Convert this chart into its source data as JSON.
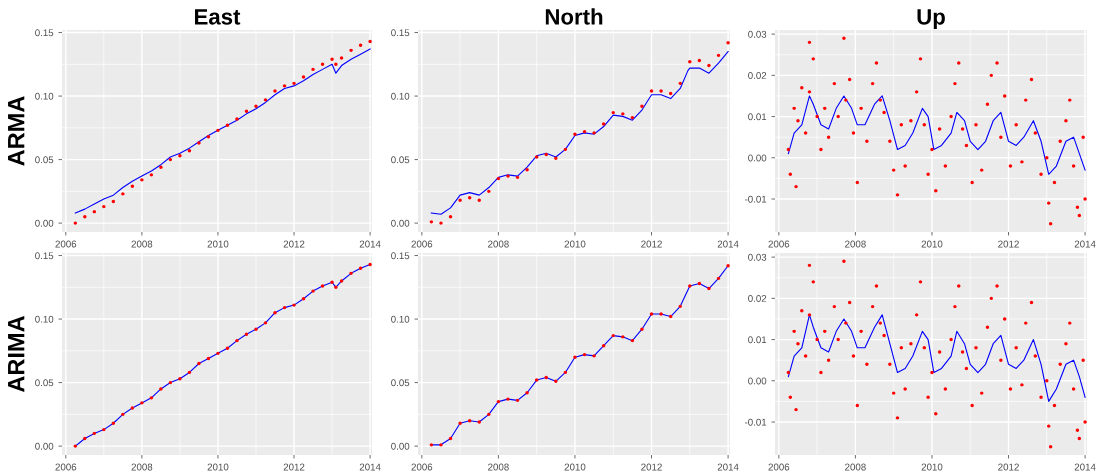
{
  "chart_data": [
    {
      "type": "line",
      "title": "East",
      "ylabel": "ARMA",
      "xlim": [
        2005.9,
        2014.05
      ],
      "ylim": [
        -0.007,
        0.152
      ],
      "xticks": [
        2006,
        2008,
        2010,
        2012,
        2014
      ],
      "yticks": [
        {
          "value": 0,
          "label": "0.00"
        },
        {
          "value": 0.05,
          "label": "0.05"
        },
        {
          "value": 0.1,
          "label": "0.10"
        },
        {
          "value": 0.15,
          "label": "0.15"
        }
      ],
      "grid": true,
      "series": [
        {
          "type": "scatter",
          "color": "#ff0000",
          "x": [
            2006.25,
            2006.5,
            2006.75,
            2007,
            2007.25,
            2007.5,
            2007.75,
            2008,
            2008.25,
            2008.5,
            2008.75,
            2009,
            2009.25,
            2009.5,
            2009.75,
            2010,
            2010.25,
            2010.5,
            2010.75,
            2011,
            2011.25,
            2011.5,
            2011.75,
            2012,
            2012.25,
            2012.5,
            2012.75,
            2013,
            2013.1,
            2013.25,
            2013.5,
            2013.75,
            2014
          ],
          "values": [
            0.0,
            0.005,
            0.009,
            0.013,
            0.017,
            0.023,
            0.029,
            0.034,
            0.038,
            0.044,
            0.05,
            0.053,
            0.057,
            0.063,
            0.068,
            0.073,
            0.077,
            0.082,
            0.088,
            0.092,
            0.097,
            0.104,
            0.108,
            0.11,
            0.115,
            0.121,
            0.125,
            0.129,
            0.125,
            0.13,
            0.136,
            0.14,
            0.143
          ]
        },
        {
          "type": "line",
          "color": "#0000ff",
          "x": [
            2006.25,
            2006.5,
            2006.75,
            2007,
            2007.25,
            2007.5,
            2007.75,
            2008,
            2008.25,
            2008.5,
            2008.75,
            2009,
            2009.25,
            2009.5,
            2009.75,
            2010,
            2010.25,
            2010.5,
            2010.75,
            2011,
            2011.25,
            2011.5,
            2011.75,
            2012,
            2012.25,
            2012.5,
            2012.75,
            2013,
            2013.1,
            2013.25,
            2013.5,
            2013.75,
            2014
          ],
          "values": [
            0.008,
            0.011,
            0.015,
            0.019,
            0.022,
            0.028,
            0.033,
            0.037,
            0.041,
            0.046,
            0.052,
            0.055,
            0.059,
            0.064,
            0.069,
            0.073,
            0.077,
            0.081,
            0.086,
            0.09,
            0.095,
            0.101,
            0.106,
            0.108,
            0.112,
            0.117,
            0.121,
            0.125,
            0.118,
            0.124,
            0.129,
            0.133,
            0.137
          ]
        }
      ]
    },
    {
      "type": "line",
      "title": "North",
      "xlim": [
        2005.9,
        2014.05
      ],
      "ylim": [
        -0.007,
        0.152
      ],
      "xticks": [
        2006,
        2008,
        2010,
        2012,
        2014
      ],
      "yticks": [
        {
          "value": 0,
          "label": "0.00"
        },
        {
          "value": 0.05,
          "label": "0.05"
        },
        {
          "value": 0.1,
          "label": "0.10"
        },
        {
          "value": 0.15,
          "label": "0.15"
        }
      ],
      "grid": true,
      "series": [
        {
          "type": "scatter",
          "color": "#ff0000",
          "x": [
            2006.25,
            2006.5,
            2006.75,
            2007,
            2007.25,
            2007.5,
            2007.75,
            2008,
            2008.25,
            2008.5,
            2008.75,
            2009,
            2009.25,
            2009.5,
            2009.75,
            2010,
            2010.25,
            2010.5,
            2010.75,
            2011,
            2011.25,
            2011.5,
            2011.75,
            2012,
            2012.25,
            2012.5,
            2012.75,
            2013,
            2013.25,
            2013.5,
            2013.75,
            2014
          ],
          "values": [
            0.001,
            0.0,
            0.005,
            0.018,
            0.02,
            0.018,
            0.025,
            0.035,
            0.037,
            0.036,
            0.042,
            0.052,
            0.054,
            0.051,
            0.058,
            0.07,
            0.072,
            0.071,
            0.078,
            0.087,
            0.086,
            0.083,
            0.092,
            0.104,
            0.104,
            0.102,
            0.11,
            0.127,
            0.128,
            0.124,
            0.132,
            0.142
          ]
        },
        {
          "type": "line",
          "color": "#0000ff",
          "x": [
            2006.25,
            2006.5,
            2006.75,
            2007,
            2007.25,
            2007.5,
            2007.75,
            2008,
            2008.25,
            2008.5,
            2008.75,
            2009,
            2009.25,
            2009.5,
            2009.75,
            2010,
            2010.25,
            2010.5,
            2010.75,
            2011,
            2011.25,
            2011.5,
            2011.75,
            2012,
            2012.25,
            2012.5,
            2012.75,
            2012.95,
            2013,
            2013.25,
            2013.5,
            2013.75,
            2014
          ],
          "values": [
            0.008,
            0.007,
            0.012,
            0.022,
            0.024,
            0.022,
            0.028,
            0.036,
            0.038,
            0.037,
            0.044,
            0.053,
            0.055,
            0.052,
            0.058,
            0.069,
            0.071,
            0.07,
            0.076,
            0.085,
            0.084,
            0.081,
            0.089,
            0.101,
            0.101,
            0.098,
            0.106,
            0.12,
            0.122,
            0.122,
            0.118,
            0.126,
            0.135
          ]
        }
      ]
    },
    {
      "type": "line",
      "title": "Up",
      "xlim": [
        2005.9,
        2014.05
      ],
      "ylim": [
        -0.018,
        0.031
      ],
      "xticks": [
        2006,
        2008,
        2010,
        2012,
        2014
      ],
      "yticks": [
        {
          "value": -0.01,
          "label": "-0.01"
        },
        {
          "value": 0,
          "label": "0.00"
        },
        {
          "value": 0.01,
          "label": "0.01"
        },
        {
          "value": 0.02,
          "label": "0.02"
        },
        {
          "value": 0.03,
          "label": "0.03"
        }
      ],
      "grid": true,
      "series": [
        {
          "type": "scatter",
          "color": "#ff0000",
          "x": [
            2006.25,
            2006.3,
            2006.4,
            2006.45,
            2006.5,
            2006.6,
            2006.7,
            2006.8,
            2006.8,
            2006.9,
            2007.0,
            2007.1,
            2007.2,
            2007.3,
            2007.45,
            2007.55,
            2007.7,
            2007.75,
            2007.85,
            2007.95,
            2008.05,
            2008.15,
            2008.3,
            2008.45,
            2008.55,
            2008.65,
            2008.75,
            2008.9,
            2009.0,
            2009.1,
            2009.2,
            2009.3,
            2009.45,
            2009.6,
            2009.7,
            2009.8,
            2009.9,
            2010.0,
            2010.1,
            2010.2,
            2010.35,
            2010.5,
            2010.6,
            2010.7,
            2010.8,
            2010.9,
            2011.05,
            2011.15,
            2011.3,
            2011.45,
            2011.55,
            2011.7,
            2011.8,
            2011.9,
            2012.05,
            2012.2,
            2012.35,
            2012.45,
            2012.6,
            2012.7,
            2012.85,
            2013.0,
            2013.05,
            2013.1,
            2013.2,
            2013.35,
            2013.5,
            2013.6,
            2013.7,
            2013.8,
            2013.85,
            2013.95,
            2014.0
          ],
          "values": [
            0.002,
            -0.004,
            0.012,
            -0.007,
            0.009,
            0.017,
            0.006,
            0.028,
            0.016,
            0.024,
            0.01,
            0.002,
            0.012,
            0.005,
            0.018,
            0.01,
            0.029,
            0.014,
            0.019,
            0.006,
            -0.006,
            0.012,
            0.004,
            0.018,
            0.023,
            0.014,
            0.011,
            0.004,
            -0.003,
            -0.009,
            0.008,
            -0.002,
            0.009,
            0.016,
            0.024,
            0.008,
            -0.004,
            0.002,
            -0.008,
            0.007,
            -0.002,
            0.01,
            0.018,
            0.023,
            0.007,
            0.003,
            -0.006,
            0.008,
            -0.003,
            0.013,
            0.02,
            0.023,
            0.005,
            0.015,
            -0.002,
            0.008,
            -0.001,
            0.014,
            0.019,
            0.006,
            -0.004,
            0.0,
            -0.011,
            -0.016,
            -0.006,
            0.004,
            0.009,
            0.014,
            -0.002,
            -0.012,
            -0.014,
            0.005,
            -0.01
          ]
        },
        {
          "type": "line",
          "color": "#0000ff",
          "x": [
            2006.25,
            2006.4,
            2006.6,
            2006.8,
            2006.9,
            2007.1,
            2007.3,
            2007.5,
            2007.7,
            2007.9,
            2008.05,
            2008.25,
            2008.5,
            2008.7,
            2008.9,
            2009.1,
            2009.3,
            2009.5,
            2009.75,
            2009.9,
            2010.05,
            2010.25,
            2010.5,
            2010.65,
            2010.85,
            2011.0,
            2011.2,
            2011.4,
            2011.6,
            2011.8,
            2012.0,
            2012.2,
            2012.4,
            2012.65,
            2012.85,
            2013.05,
            2013.25,
            2013.5,
            2013.7,
            2013.85,
            2014.0
          ],
          "values": [
            0.001,
            0.006,
            0.008,
            0.015,
            0.013,
            0.008,
            0.007,
            0.012,
            0.015,
            0.012,
            0.008,
            0.008,
            0.013,
            0.015,
            0.009,
            0.002,
            0.003,
            0.006,
            0.012,
            0.01,
            0.002,
            0.003,
            0.006,
            0.011,
            0.009,
            0.004,
            0.002,
            0.004,
            0.009,
            0.011,
            0.004,
            0.003,
            0.005,
            0.009,
            0.004,
            -0.004,
            -0.002,
            0.004,
            0.005,
            0.001,
            -0.003
          ]
        }
      ]
    },
    {
      "type": "line",
      "ylabel": "ARIMA",
      "xlim": [
        2005.9,
        2014.05
      ],
      "ylim": [
        -0.007,
        0.152
      ],
      "xticks": [
        2006,
        2008,
        2010,
        2012,
        2014
      ],
      "yticks": [
        {
          "value": 0,
          "label": "0.00"
        },
        {
          "value": 0.05,
          "label": "0.05"
        },
        {
          "value": 0.1,
          "label": "0.10"
        },
        {
          "value": 0.15,
          "label": "0.15"
        }
      ],
      "grid": true,
      "series": [
        {
          "type": "scatter",
          "color": "#ff0000",
          "x": [
            2006.25,
            2006.5,
            2006.75,
            2007,
            2007.25,
            2007.5,
            2007.75,
            2008,
            2008.25,
            2008.5,
            2008.75,
            2009,
            2009.25,
            2009.5,
            2009.75,
            2010,
            2010.25,
            2010.5,
            2010.75,
            2011,
            2011.25,
            2011.5,
            2011.75,
            2012,
            2012.25,
            2012.5,
            2012.75,
            2013,
            2013.1,
            2013.25,
            2013.5,
            2013.75,
            2014
          ],
          "values": [
            0.0,
            0.006,
            0.01,
            0.013,
            0.018,
            0.025,
            0.03,
            0.034,
            0.038,
            0.045,
            0.05,
            0.053,
            0.058,
            0.065,
            0.069,
            0.073,
            0.077,
            0.083,
            0.088,
            0.092,
            0.097,
            0.105,
            0.109,
            0.111,
            0.116,
            0.122,
            0.126,
            0.129,
            0.125,
            0.13,
            0.136,
            0.14,
            0.143
          ]
        },
        {
          "type": "line",
          "color": "#0000ff",
          "x": [
            2006.25,
            2006.5,
            2006.75,
            2007,
            2007.25,
            2007.5,
            2007.75,
            2008,
            2008.25,
            2008.5,
            2008.75,
            2009,
            2009.25,
            2009.5,
            2009.75,
            2010,
            2010.25,
            2010.5,
            2010.75,
            2011,
            2011.25,
            2011.5,
            2011.75,
            2012,
            2012.25,
            2012.5,
            2012.75,
            2013,
            2013.1,
            2013.25,
            2013.5,
            2013.75,
            2014
          ],
          "values": [
            0.0,
            0.006,
            0.01,
            0.013,
            0.018,
            0.025,
            0.03,
            0.034,
            0.038,
            0.045,
            0.05,
            0.053,
            0.058,
            0.065,
            0.069,
            0.073,
            0.077,
            0.083,
            0.088,
            0.092,
            0.097,
            0.105,
            0.109,
            0.111,
            0.116,
            0.122,
            0.126,
            0.129,
            0.125,
            0.13,
            0.136,
            0.14,
            0.143
          ]
        }
      ]
    },
    {
      "type": "line",
      "xlim": [
        2005.9,
        2014.05
      ],
      "ylim": [
        -0.007,
        0.152
      ],
      "xticks": [
        2006,
        2008,
        2010,
        2012,
        2014
      ],
      "yticks": [
        {
          "value": 0,
          "label": "0.00"
        },
        {
          "value": 0.05,
          "label": "0.05"
        },
        {
          "value": 0.1,
          "label": "0.10"
        },
        {
          "value": 0.15,
          "label": "0.15"
        }
      ],
      "grid": true,
      "series": [
        {
          "type": "scatter",
          "color": "#ff0000",
          "x": [
            2006.25,
            2006.5,
            2006.75,
            2007,
            2007.25,
            2007.5,
            2007.75,
            2008,
            2008.25,
            2008.5,
            2008.75,
            2009,
            2009.25,
            2009.5,
            2009.75,
            2010,
            2010.25,
            2010.5,
            2010.75,
            2011,
            2011.25,
            2011.5,
            2011.75,
            2012,
            2012.25,
            2012.5,
            2012.75,
            2013,
            2013.25,
            2013.5,
            2013.75,
            2014
          ],
          "values": [
            0.001,
            0.001,
            0.006,
            0.018,
            0.02,
            0.019,
            0.025,
            0.035,
            0.037,
            0.036,
            0.042,
            0.052,
            0.054,
            0.051,
            0.058,
            0.07,
            0.072,
            0.071,
            0.079,
            0.087,
            0.086,
            0.083,
            0.092,
            0.104,
            0.104,
            0.102,
            0.11,
            0.126,
            0.128,
            0.124,
            0.132,
            0.142
          ]
        },
        {
          "type": "line",
          "color": "#0000ff",
          "x": [
            2006.25,
            2006.5,
            2006.75,
            2007,
            2007.25,
            2007.5,
            2007.75,
            2008,
            2008.25,
            2008.5,
            2008.75,
            2009,
            2009.25,
            2009.5,
            2009.75,
            2010,
            2010.25,
            2010.5,
            2010.75,
            2011,
            2011.25,
            2011.5,
            2011.75,
            2012,
            2012.25,
            2012.5,
            2012.75,
            2013,
            2013.25,
            2013.5,
            2013.75,
            2014
          ],
          "values": [
            0.001,
            0.001,
            0.006,
            0.018,
            0.02,
            0.019,
            0.025,
            0.035,
            0.037,
            0.036,
            0.042,
            0.052,
            0.054,
            0.051,
            0.058,
            0.07,
            0.072,
            0.071,
            0.079,
            0.087,
            0.086,
            0.083,
            0.092,
            0.104,
            0.104,
            0.102,
            0.11,
            0.126,
            0.128,
            0.124,
            0.132,
            0.142
          ]
        }
      ]
    },
    {
      "type": "line",
      "xlim": [
        2005.9,
        2014.05
      ],
      "ylim": [
        -0.018,
        0.031
      ],
      "xticks": [
        2006,
        2008,
        2010,
        2012,
        2014
      ],
      "yticks": [
        {
          "value": -0.01,
          "label": "-0.01"
        },
        {
          "value": 0,
          "label": "0.00"
        },
        {
          "value": 0.01,
          "label": "0.01"
        },
        {
          "value": 0.02,
          "label": "0.02"
        },
        {
          "value": 0.03,
          "label": "0.03"
        }
      ],
      "grid": true,
      "series": [
        {
          "type": "scatter",
          "color": "#ff0000",
          "x": [
            2006.25,
            2006.3,
            2006.4,
            2006.45,
            2006.5,
            2006.6,
            2006.7,
            2006.8,
            2006.8,
            2006.9,
            2007.0,
            2007.1,
            2007.2,
            2007.3,
            2007.45,
            2007.55,
            2007.7,
            2007.75,
            2007.85,
            2007.95,
            2008.05,
            2008.15,
            2008.3,
            2008.45,
            2008.55,
            2008.65,
            2008.75,
            2008.9,
            2009.0,
            2009.1,
            2009.2,
            2009.3,
            2009.45,
            2009.6,
            2009.7,
            2009.8,
            2009.9,
            2010.0,
            2010.1,
            2010.2,
            2010.35,
            2010.5,
            2010.6,
            2010.7,
            2010.8,
            2010.9,
            2011.05,
            2011.15,
            2011.3,
            2011.45,
            2011.55,
            2011.7,
            2011.8,
            2011.9,
            2012.05,
            2012.2,
            2012.35,
            2012.45,
            2012.6,
            2012.7,
            2012.85,
            2013.0,
            2013.05,
            2013.1,
            2013.2,
            2013.35,
            2013.5,
            2013.6,
            2013.7,
            2013.8,
            2013.85,
            2013.95,
            2014.0
          ],
          "values": [
            0.002,
            -0.004,
            0.012,
            -0.007,
            0.009,
            0.017,
            0.006,
            0.028,
            0.016,
            0.024,
            0.01,
            0.002,
            0.012,
            0.005,
            0.018,
            0.01,
            0.029,
            0.014,
            0.019,
            0.006,
            -0.006,
            0.012,
            0.004,
            0.018,
            0.023,
            0.014,
            0.011,
            0.004,
            -0.003,
            -0.009,
            0.008,
            -0.002,
            0.009,
            0.016,
            0.024,
            0.008,
            -0.004,
            0.002,
            -0.008,
            0.007,
            -0.002,
            0.01,
            0.018,
            0.023,
            0.007,
            0.003,
            -0.006,
            0.008,
            -0.003,
            0.013,
            0.02,
            0.023,
            0.005,
            0.015,
            -0.002,
            0.008,
            -0.001,
            0.014,
            0.019,
            0.006,
            -0.004,
            0.0,
            -0.011,
            -0.016,
            -0.006,
            0.004,
            0.009,
            0.014,
            -0.002,
            -0.012,
            -0.014,
            0.005,
            -0.01
          ]
        },
        {
          "type": "line",
          "color": "#0000ff",
          "x": [
            2006.25,
            2006.4,
            2006.6,
            2006.8,
            2006.9,
            2007.1,
            2007.3,
            2007.5,
            2007.7,
            2007.9,
            2008.05,
            2008.25,
            2008.5,
            2008.7,
            2008.9,
            2009.1,
            2009.3,
            2009.5,
            2009.75,
            2009.9,
            2010.05,
            2010.25,
            2010.5,
            2010.65,
            2010.85,
            2011.0,
            2011.2,
            2011.4,
            2011.6,
            2011.8,
            2012.0,
            2012.2,
            2012.4,
            2012.65,
            2012.85,
            2013.05,
            2013.25,
            2013.5,
            2013.7,
            2013.85,
            2014.0
          ],
          "values": [
            0.001,
            0.006,
            0.008,
            0.016,
            0.013,
            0.008,
            0.007,
            0.012,
            0.015,
            0.012,
            0.008,
            0.008,
            0.013,
            0.016,
            0.009,
            0.002,
            0.003,
            0.006,
            0.012,
            0.01,
            0.002,
            0.003,
            0.006,
            0.012,
            0.009,
            0.004,
            0.002,
            0.004,
            0.009,
            0.011,
            0.004,
            0.003,
            0.005,
            0.01,
            0.004,
            -0.005,
            -0.002,
            0.004,
            0.005,
            0.001,
            -0.004
          ]
        }
      ]
    }
  ]
}
